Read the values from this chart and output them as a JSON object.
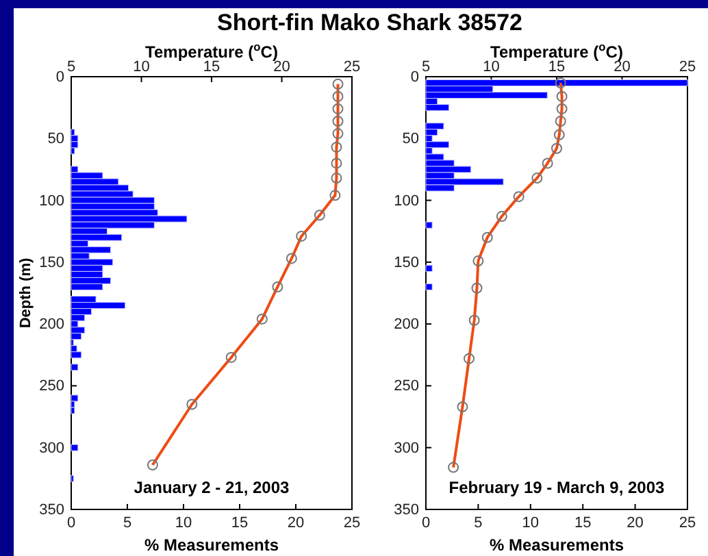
{
  "chart_data": [
    {
      "type": "histogram",
      "title": "Short-fin Mako Shark  38572",
      "orientation": "horizontal",
      "xlabel": "% Measurements",
      "ylabel": "Depth (m)",
      "x2label": "Temperature ($^{o}$C)",
      "xlim": [
        0,
        25
      ],
      "xticks": [
        0,
        5,
        10,
        15,
        20,
        25
      ],
      "x2lim": [
        5,
        25
      ],
      "x2ticks": [
        5,
        10,
        15,
        20,
        25
      ],
      "ylim": [
        350,
        0
      ],
      "yticks": [
        0,
        50,
        100,
        150,
        200,
        250,
        300,
        350
      ],
      "grid": false,
      "marker": "circle",
      "annotations": [
        "January 2 - 21, 2003"
      ],
      "series": [
        {
          "color": "#0000ff",
          "bins": [
            2.5,
            7.5,
            12.5,
            17.5,
            22.5,
            27.5,
            32.5,
            37.5,
            42.5,
            47.5,
            52.5,
            57.5,
            62.5,
            67.5,
            72.5,
            77.5,
            82.5,
            87.5,
            92.5,
            97.5,
            102.5,
            107.5,
            112.5,
            117.5,
            122.5,
            127.5,
            132.5,
            137.5,
            142.5,
            147.5,
            152.5,
            157.5,
            162.5,
            167.5,
            172.5,
            177.5,
            182.5,
            187.5,
            192.5,
            197.5,
            202.5,
            207.5,
            212.5,
            217.5,
            222.5,
            227.5,
            232.5,
            237.5,
            242.5,
            247.5,
            252.5,
            257.5,
            262.5,
            267.5,
            272.5,
            277.5,
            282.5,
            287.5,
            292.5,
            297.5,
            302.5,
            307.5,
            312.5,
            317.5,
            322.5,
            327.5
          ],
          "values": [
            0,
            0,
            0,
            0,
            0,
            0,
            0,
            0,
            0.3,
            0.6,
            0.6,
            0.3,
            0,
            0,
            0.6,
            2.8,
            4.2,
            5.1,
            5.5,
            7.4,
            7.4,
            7.7,
            10.3,
            7.4,
            3.2,
            4.5,
            1.5,
            3.5,
            1.6,
            3.7,
            2.8,
            2.8,
            3.5,
            2.8,
            0,
            2.2,
            4.8,
            1.8,
            1.2,
            0.6,
            1.2,
            0.9,
            0.2,
            0.5,
            0.9,
            0,
            0.6,
            0,
            0,
            0,
            0,
            0.6,
            0.3,
            0.3,
            0,
            0,
            0,
            0,
            0,
            0.6,
            0,
            0,
            0,
            0,
            0.2
          ]
        },
        {
          "type": "line",
          "axis": "x2",
          "color": "#ee4c14",
          "x": [
            6,
            16,
            26,
            36,
            46,
            57,
            70,
            82,
            96,
            112,
            129,
            147,
            170,
            196,
            227,
            265,
            314
          ],
          "values": [
            24.0,
            24.0,
            24.0,
            24.0,
            24.0,
            23.9,
            23.9,
            23.9,
            23.8,
            22.7,
            21.4,
            20.7,
            19.7,
            18.6,
            16.4,
            13.6,
            10.8
          ]
        }
      ]
    },
    {
      "type": "histogram",
      "orientation": "horizontal",
      "xlabel": "% Measurements",
      "x2label": "Temperature ($^{o}$C)",
      "xlim": [
        0,
        25
      ],
      "xticks": [
        0,
        5,
        10,
        15,
        20,
        25
      ],
      "x2lim": [
        5,
        25
      ],
      "x2ticks": [
        5,
        10,
        15,
        20,
        25
      ],
      "ylim": [
        350,
        0
      ],
      "yticks": [
        0,
        50,
        100,
        150,
        200,
        250,
        300,
        350
      ],
      "grid": false,
      "marker": "circle",
      "annotations": [
        "February 19 - March 9, 2003"
      ],
      "series": [
        {
          "color": "#0000ff",
          "bins": [
            2.5,
            7.5,
            12.5,
            17.5,
            22.5,
            27.5,
            32.5,
            37.5,
            42.5,
            47.5,
            52.5,
            57.5,
            62.5,
            67.5,
            72.5,
            77.5,
            82.5,
            87.5,
            92.5,
            97.5,
            102.5,
            107.5,
            112.5,
            117.5,
            122.5,
            127.5,
            132.5,
            137.5,
            142.5,
            147.5,
            152.5,
            157.5,
            162.5,
            167.5,
            172.5
          ],
          "values": [
            25,
            6.4,
            11.6,
            1.1,
            2.2,
            0,
            0,
            1.7,
            1.1,
            0.6,
            2.2,
            0.6,
            1.7,
            2.7,
            4.3,
            2.7,
            7.4,
            2.7,
            0,
            0,
            0,
            0,
            0,
            0.6,
            0,
            0,
            0,
            0,
            0,
            0,
            0.6,
            0,
            0,
            0.6
          ]
        },
        {
          "type": "line",
          "axis": "x2",
          "color": "#ee4c14",
          "x": [
            5,
            16,
            26,
            36,
            47,
            58,
            70,
            82,
            97,
            113,
            130,
            149,
            171,
            197,
            228,
            267,
            316
          ],
          "values": [
            15.3,
            15.4,
            15.4,
            15.3,
            15.2,
            15.0,
            14.3,
            13.5,
            12.1,
            10.8,
            9.7,
            9.0,
            8.9,
            8.7,
            8.3,
            7.8,
            7.1
          ]
        }
      ]
    }
  ]
}
